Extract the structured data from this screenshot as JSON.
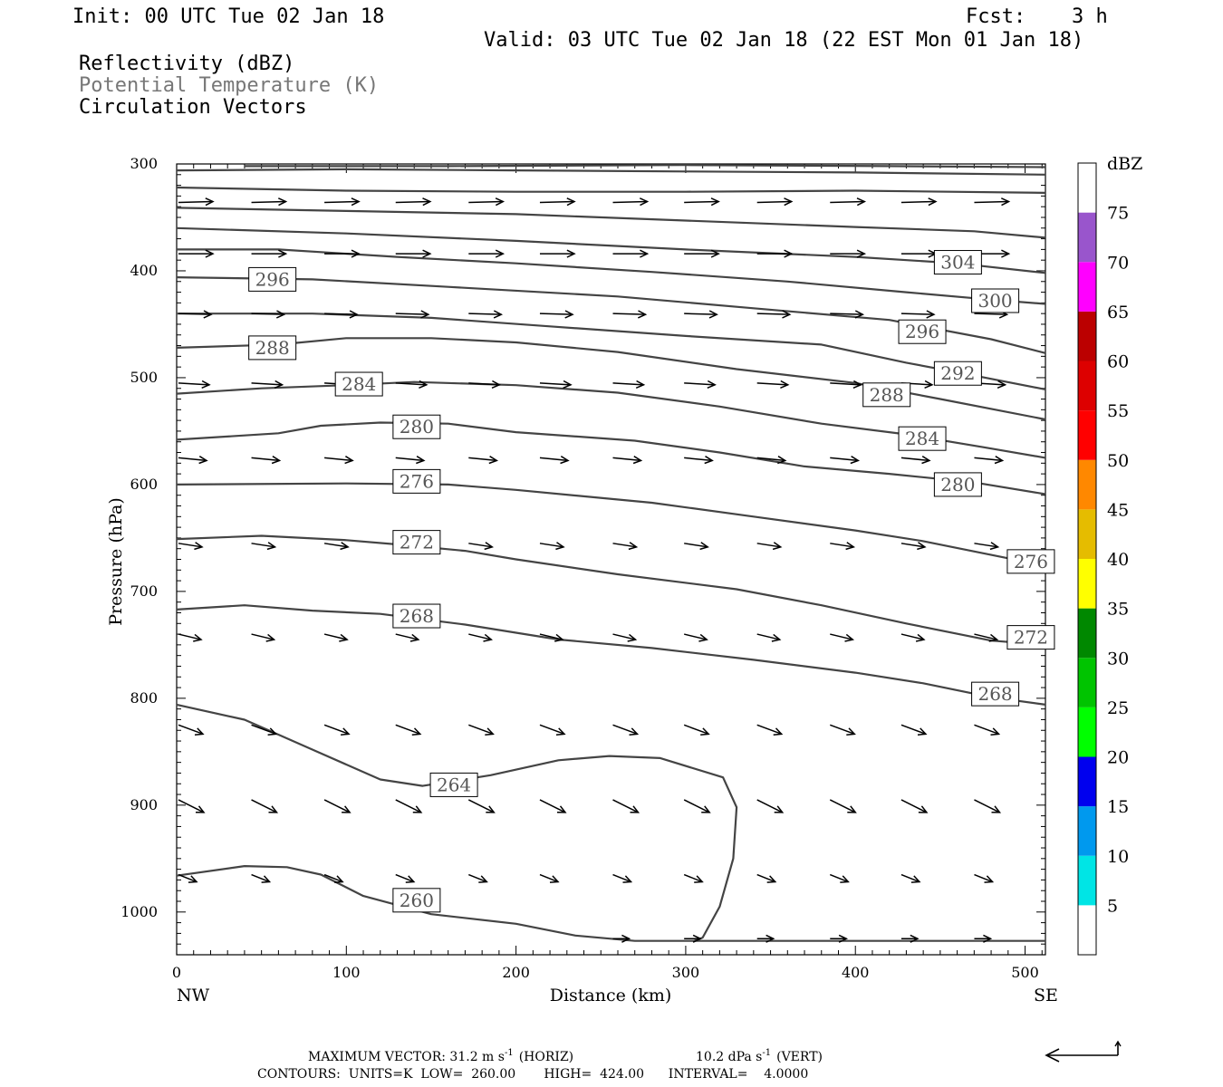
{
  "header": {
    "init": "Init: 00 UTC Tue 02 Jan 18",
    "fcst_label": "Fcst:",
    "fcst_value": "3 h",
    "valid": "Valid: 03 UTC Tue 02 Jan 18 (22 EST Mon 01 Jan 18)",
    "fields": [
      "Reflectivity (dBZ)",
      "Potential Temperature (K)",
      "Circulation Vectors"
    ]
  },
  "colors": {
    "contour": "#444444",
    "vector": "#000000",
    "pt_label_text": "#777777"
  },
  "footer": {
    "line1_left": "MAXIMUM VECTOR:  31.2 m s",
    "line1_horiz": "(HORIZ)",
    "line1_right": "10.2 dPa s",
    "line1_vert": "(VERT)",
    "exp": "-1",
    "line2": "CONTOURS:  UNITS=K  LOW=  260.00       HIGH=  424.00      INTERVAL=    4.0000"
  },
  "chart_data": {
    "type": "contour",
    "title": "",
    "xlabel": "Distance (km)",
    "ylabel": "Pressure (hPa)",
    "xlim": [
      0,
      512
    ],
    "ylim": [
      1040,
      300
    ],
    "xticks": [
      0,
      100,
      200,
      300,
      400,
      500
    ],
    "yticks": [
      300,
      400,
      500,
      600,
      700,
      800,
      900,
      1000
    ],
    "x_end_labels": [
      "NW",
      "SE"
    ],
    "contour_units": "K",
    "contours": [
      {
        "theta": 260,
        "points": [
          [
            0,
            966
          ],
          [
            40,
            957
          ],
          [
            65,
            958
          ],
          [
            85,
            965
          ],
          [
            110,
            985
          ],
          [
            150,
            1002
          ],
          [
            200,
            1011
          ],
          [
            235,
            1022
          ],
          [
            270,
            1027
          ],
          [
            512,
            1027
          ]
        ]
      },
      {
        "theta": 264,
        "points": [
          [
            0,
            806
          ],
          [
            40,
            820
          ],
          [
            80,
            848
          ],
          [
            120,
            876
          ],
          [
            145,
            882
          ],
          [
            185,
            872
          ],
          [
            225,
            858
          ],
          [
            255,
            854
          ],
          [
            285,
            856
          ],
          [
            322,
            874
          ],
          [
            330,
            902
          ],
          [
            328,
            950
          ],
          [
            320,
            995
          ],
          [
            310,
            1024
          ],
          [
            305,
            1027
          ]
        ]
      },
      {
        "theta": 268,
        "points": [
          [
            0,
            717
          ],
          [
            40,
            713
          ],
          [
            80,
            718
          ],
          [
            120,
            721
          ],
          [
            170,
            731
          ],
          [
            225,
            745
          ],
          [
            280,
            753
          ],
          [
            340,
            764
          ],
          [
            400,
            776
          ],
          [
            440,
            786
          ],
          [
            480,
            799
          ],
          [
            512,
            806
          ]
        ]
      },
      {
        "theta": 272,
        "points": [
          [
            0,
            651
          ],
          [
            50,
            648
          ],
          [
            100,
            652
          ],
          [
            130,
            656
          ],
          [
            170,
            662
          ],
          [
            200,
            670
          ],
          [
            260,
            684
          ],
          [
            330,
            698
          ],
          [
            380,
            713
          ],
          [
            430,
            730
          ],
          [
            480,
            746
          ],
          [
            512,
            750
          ]
        ]
      },
      {
        "theta": 276,
        "points": [
          [
            0,
            600
          ],
          [
            100,
            599
          ],
          [
            160,
            600
          ],
          [
            200,
            605
          ],
          [
            280,
            617
          ],
          [
            340,
            630
          ],
          [
            400,
            643
          ],
          [
            440,
            653
          ],
          [
            490,
            669
          ],
          [
            512,
            674
          ]
        ]
      },
      {
        "theta": 280,
        "points": [
          [
            0,
            558
          ],
          [
            60,
            552
          ],
          [
            85,
            545
          ],
          [
            120,
            542
          ],
          [
            160,
            543
          ],
          [
            200,
            551
          ],
          [
            270,
            559
          ],
          [
            320,
            570
          ],
          [
            370,
            583
          ],
          [
            420,
            590
          ],
          [
            470,
            598
          ],
          [
            512,
            609
          ]
        ]
      },
      {
        "theta": 284,
        "points": [
          [
            0,
            515
          ],
          [
            50,
            510
          ],
          [
            100,
            507
          ],
          [
            140,
            504
          ],
          [
            200,
            507
          ],
          [
            260,
            514
          ],
          [
            320,
            527
          ],
          [
            380,
            543
          ],
          [
            430,
            553
          ],
          [
            475,
            565
          ],
          [
            512,
            575
          ]
        ]
      },
      {
        "theta": 288,
        "points": [
          [
            0,
            472
          ],
          [
            60,
            469
          ],
          [
            100,
            463
          ],
          [
            150,
            463
          ],
          [
            200,
            467
          ],
          [
            260,
            476
          ],
          [
            330,
            492
          ],
          [
            400,
            505
          ],
          [
            450,
            520
          ],
          [
            512,
            539
          ]
        ]
      },
      {
        "theta": 292,
        "points": [
          [
            0,
            440
          ],
          [
            80,
            440
          ],
          [
            150,
            444
          ],
          [
            220,
            452
          ],
          [
            300,
            461
          ],
          [
            380,
            469
          ],
          [
            430,
            486
          ],
          [
            470,
            498
          ],
          [
            512,
            511
          ]
        ]
      },
      {
        "theta": 296,
        "points": [
          [
            0,
            406
          ],
          [
            80,
            408
          ],
          [
            160,
            415
          ],
          [
            260,
            424
          ],
          [
            340,
            435
          ],
          [
            420,
            446
          ],
          [
            480,
            464
          ],
          [
            512,
            477
          ]
        ]
      },
      {
        "theta": 300,
        "points": [
          [
            0,
            380
          ],
          [
            60,
            380
          ],
          [
            130,
            387
          ],
          [
            200,
            393
          ],
          [
            280,
            401
          ],
          [
            360,
            410
          ],
          [
            430,
            420
          ],
          [
            480,
            427
          ],
          [
            512,
            431
          ]
        ]
      },
      {
        "theta": 304,
        "points": [
          [
            0,
            360
          ],
          [
            100,
            365
          ],
          [
            200,
            372
          ],
          [
            300,
            380
          ],
          [
            400,
            387
          ],
          [
            460,
            393
          ],
          [
            512,
            402
          ]
        ]
      },
      {
        "theta": 308,
        "points": [
          [
            0,
            341
          ],
          [
            100,
            344
          ],
          [
            200,
            347
          ],
          [
            300,
            353
          ],
          [
            400,
            359
          ],
          [
            470,
            363
          ],
          [
            512,
            369
          ]
        ]
      },
      {
        "theta": 312,
        "points": [
          [
            0,
            322
          ],
          [
            100,
            325
          ],
          [
            200,
            326
          ],
          [
            300,
            326
          ],
          [
            400,
            325
          ],
          [
            512,
            327
          ]
        ]
      },
      {
        "theta": 316,
        "points": [
          [
            0,
            306
          ],
          [
            100,
            305
          ],
          [
            200,
            306
          ],
          [
            300,
            307
          ],
          [
            400,
            308
          ],
          [
            512,
            310
          ]
        ]
      },
      {
        "theta": 320,
        "points": [
          [
            40,
            302
          ],
          [
            160,
            302
          ],
          [
            300,
            301
          ],
          [
            420,
            302
          ],
          [
            512,
            303
          ]
        ]
      }
    ],
    "contour_labels": [
      {
        "text": "296",
        "x": 42,
        "y": 408
      },
      {
        "text": "288",
        "x": 42,
        "y": 472
      },
      {
        "text": "284",
        "x": 93,
        "y": 506
      },
      {
        "text": "280",
        "x": 127,
        "y": 546
      },
      {
        "text": "276",
        "x": 127,
        "y": 597
      },
      {
        "text": "272",
        "x": 127,
        "y": 654
      },
      {
        "text": "268",
        "x": 127,
        "y": 723
      },
      {
        "text": "264",
        "x": 149,
        "y": 881
      },
      {
        "text": "260",
        "x": 127,
        "y": 989
      },
      {
        "text": "304",
        "x": 446,
        "y": 392
      },
      {
        "text": "300",
        "x": 468,
        "y": 428
      },
      {
        "text": "296",
        "x": 425,
        "y": 457
      },
      {
        "text": "292",
        "x": 446,
        "y": 496
      },
      {
        "text": "288",
        "x": 404,
        "y": 516
      },
      {
        "text": "284",
        "x": 425,
        "y": 557
      },
      {
        "text": "280",
        "x": 446,
        "y": 600
      },
      {
        "text": "276",
        "x": 489,
        "y": 672
      },
      {
        "text": "272",
        "x": 489,
        "y": 743
      },
      {
        "text": "268",
        "x": 468,
        "y": 796
      }
    ],
    "vector_rows": [
      {
        "p": 336,
        "dx": 38,
        "dy": -1,
        "xs": [
          0,
          43,
          86,
          128,
          171,
          213,
          256,
          298,
          341,
          384,
          426,
          469
        ]
      },
      {
        "p": 384,
        "dx": 38,
        "dy": 0,
        "xs": [
          0,
          43,
          86,
          128,
          171,
          213,
          256,
          298,
          341,
          384,
          426,
          469
        ]
      },
      {
        "p": 440,
        "dx": 36,
        "dy": 1,
        "xs": [
          0,
          43,
          86,
          128,
          171,
          213,
          256,
          298,
          341,
          384,
          426,
          469
        ]
      },
      {
        "p": 505,
        "dx": 34,
        "dy": 2,
        "xs": [
          0,
          43,
          86,
          128,
          171,
          213,
          256,
          298,
          341,
          384,
          426,
          469
        ]
      },
      {
        "p": 575,
        "dx": 31,
        "dy": 3,
        "xs": [
          0,
          43,
          86,
          128,
          171,
          213,
          256,
          298,
          341,
          384,
          426,
          469
        ]
      },
      {
        "p": 655,
        "dx": 26,
        "dy": 4,
        "xs": [
          0,
          43,
          86,
          128,
          171,
          213,
          256,
          298,
          341,
          384,
          426,
          469
        ]
      },
      {
        "p": 740,
        "dx": 25,
        "dy": 6,
        "xs": [
          0,
          43,
          86,
          128,
          171,
          213,
          256,
          298,
          341,
          384,
          426,
          469
        ]
      },
      {
        "p": 825,
        "dx": 27,
        "dy": 10,
        "xs": [
          0,
          43,
          86,
          128,
          171,
          213,
          256,
          298,
          341,
          384,
          426,
          469
        ]
      },
      {
        "p": 895,
        "dx": 28,
        "dy": 14,
        "xs": [
          0,
          43,
          86,
          128,
          171,
          213,
          256,
          298,
          341,
          384,
          426,
          469
        ]
      },
      {
        "p": 965,
        "dx": 20,
        "dy": 8,
        "xs": [
          0,
          43,
          86,
          128,
          171,
          213,
          256,
          298,
          341,
          384,
          426,
          469
        ]
      },
      {
        "p": 1025,
        "dx": 18,
        "dy": 0,
        "xs": [
          256,
          298,
          341,
          384,
          426,
          469
        ]
      }
    ],
    "colorbar": {
      "title": "dBZ",
      "levels": [
        5,
        10,
        15,
        20,
        25,
        30,
        35,
        40,
        45,
        50,
        55,
        60,
        65,
        70,
        75
      ],
      "colors": [
        "#ffffff",
        "#00e5e5",
        "#0099ee",
        "#0000ee",
        "#00ff00",
        "#00c400",
        "#008800",
        "#ffff00",
        "#e5bc00",
        "#ff8800",
        "#ff0000",
        "#dd0000",
        "#bb0000",
        "#ff00ff",
        "#9955cc",
        "#ffffff"
      ]
    }
  }
}
